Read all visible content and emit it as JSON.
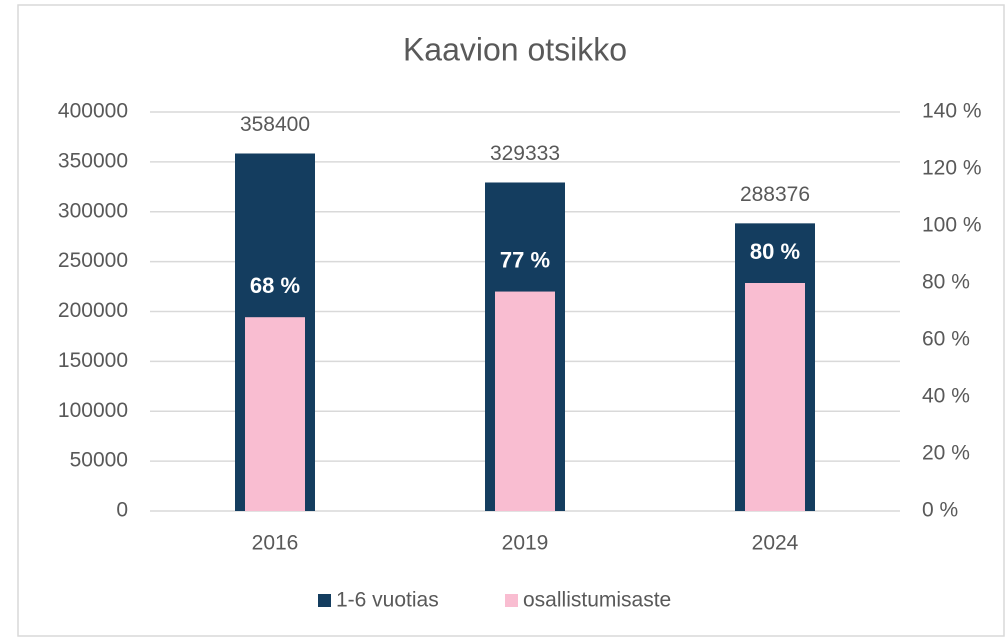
{
  "chart_data": {
    "type": "bar",
    "title": "Kaavion otsikko",
    "categories": [
      "2016",
      "2019",
      "2024"
    ],
    "series": [
      {
        "name": "1-6 vuotias",
        "color": "#143d5f",
        "values": [
          358400,
          329333,
          288376
        ]
      },
      {
        "name": "osallistumisaste",
        "color": "#f9bdd1",
        "values": [
          68,
          77,
          80
        ],
        "axis": "y2",
        "value_labels": [
          "68 %",
          "77 %",
          "80 %"
        ]
      }
    ],
    "ylim": [
      0,
      400000
    ],
    "yticks": [
      0,
      50000,
      100000,
      150000,
      200000,
      250000,
      300000,
      350000,
      400000
    ],
    "y2lim": [
      0,
      140
    ],
    "y2ticks": [
      {
        "value": 0,
        "label": "0 %"
      },
      {
        "value": 20,
        "label": "20 %"
      },
      {
        "value": 40,
        "label": "40 %"
      },
      {
        "value": 60,
        "label": "60 %"
      },
      {
        "value": 80,
        "label": "80 %"
      },
      {
        "value": 100,
        "label": "100 %"
      },
      {
        "value": 120,
        "label": "120 %"
      },
      {
        "value": 140,
        "label": "140 %"
      }
    ],
    "grid": true,
    "legend": "bottom"
  }
}
